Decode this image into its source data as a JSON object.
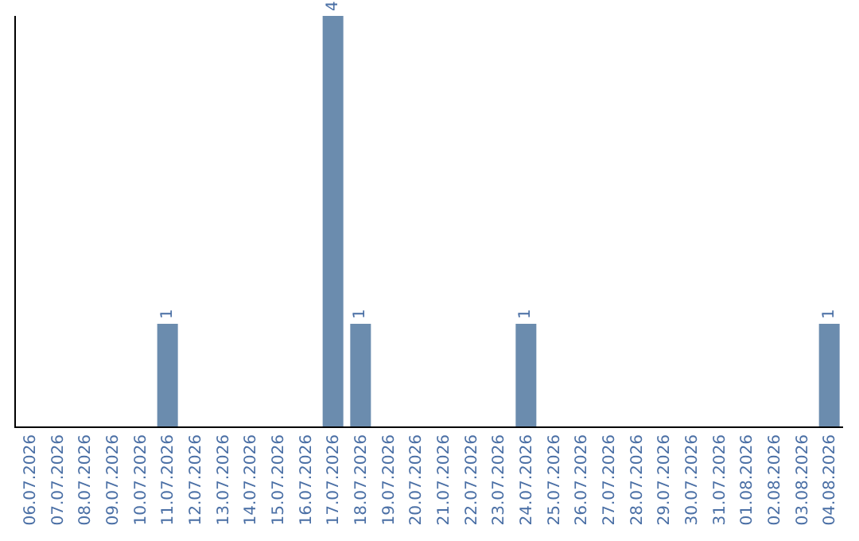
{
  "chart_data": {
    "type": "bar",
    "categories": [
      "06.07.2026",
      "07.07.2026",
      "08.07.2026",
      "09.07.2026",
      "10.07.2026",
      "11.07.2026",
      "12.07.2026",
      "13.07.2026",
      "14.07.2026",
      "15.07.2026",
      "16.07.2026",
      "17.07.2026",
      "18.07.2026",
      "19.07.2026",
      "20.07.2026",
      "21.07.2026",
      "22.07.2026",
      "23.07.2026",
      "24.07.2026",
      "25.07.2026",
      "26.07.2026",
      "27.07.2026",
      "28.07.2026",
      "29.07.2026",
      "30.07.2026",
      "31.07.2026",
      "01.08.2026",
      "02.08.2026",
      "03.08.2026",
      "04.08.2026"
    ],
    "values": [
      0,
      0,
      0,
      0,
      0,
      1,
      0,
      0,
      0,
      0,
      0,
      4,
      1,
      0,
      0,
      0,
      0,
      0,
      1,
      0,
      0,
      0,
      0,
      0,
      0,
      0,
      0,
      0,
      0,
      1
    ],
    "color": "#6b8cae",
    "value_labels": [
      null,
      null,
      null,
      null,
      null,
      "1",
      null,
      null,
      null,
      null,
      null,
      "4",
      "1",
      null,
      null,
      null,
      null,
      null,
      "1",
      null,
      null,
      null,
      null,
      null,
      null,
      null,
      null,
      null,
      null,
      "1"
    ],
    "grid": false
  }
}
